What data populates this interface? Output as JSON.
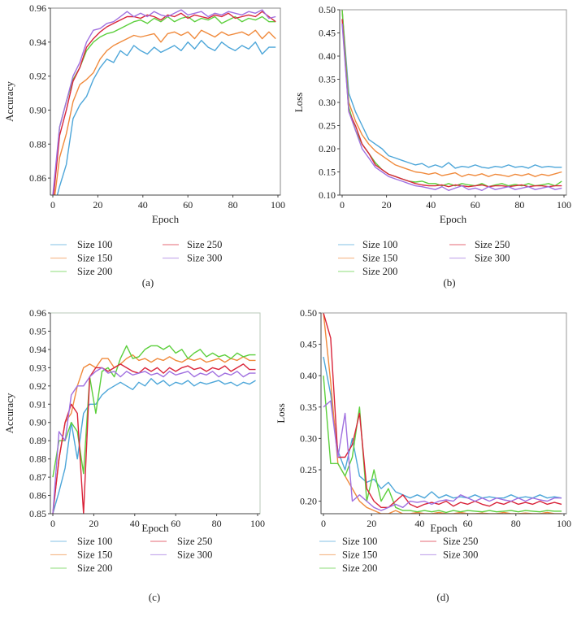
{
  "chart_data": [
    {
      "panel": "(a)",
      "type": "line",
      "xlabel": "Epoch",
      "ylabel": "Accuracy",
      "xlim": [
        0,
        100
      ],
      "ylim": [
        0.85,
        0.96
      ],
      "xticks": [
        "0",
        "20",
        "40",
        "60",
        "80",
        "100"
      ],
      "yticks": [
        "0.86",
        "0.88",
        "0.90",
        "0.92",
        "0.94",
        "0.96"
      ],
      "grid": false,
      "legend_placement": "below",
      "x": [
        0,
        3,
        6,
        9,
        12,
        15,
        18,
        21,
        24,
        27,
        30,
        33,
        36,
        39,
        42,
        45,
        48,
        51,
        54,
        57,
        60,
        63,
        66,
        69,
        72,
        75,
        78,
        81,
        84,
        87,
        90,
        93,
        96,
        99
      ],
      "series": [
        {
          "name": "Size 100",
          "color": "#4da6d9",
          "values": [
            0.84,
            0.855,
            0.868,
            0.895,
            0.903,
            0.908,
            0.918,
            0.925,
            0.93,
            0.928,
            0.935,
            0.932,
            0.938,
            0.935,
            0.933,
            0.937,
            0.934,
            0.936,
            0.938,
            0.935,
            0.94,
            0.936,
            0.941,
            0.937,
            0.935,
            0.94,
            0.937,
            0.935,
            0.938,
            0.936,
            0.94,
            0.933,
            0.937,
            0.937
          ]
        },
        {
          "name": "Size 150",
          "color": "#f08a3c",
          "values": [
            0.84,
            0.872,
            0.886,
            0.905,
            0.915,
            0.918,
            0.922,
            0.93,
            0.935,
            0.938,
            0.94,
            0.942,
            0.944,
            0.943,
            0.944,
            0.945,
            0.94,
            0.945,
            0.946,
            0.944,
            0.946,
            0.942,
            0.947,
            0.945,
            0.943,
            0.946,
            0.944,
            0.945,
            0.946,
            0.944,
            0.947,
            0.942,
            0.946,
            0.942
          ]
        },
        {
          "name": "Size 200",
          "color": "#5ccf3c",
          "values": [
            0.845,
            0.89,
            0.905,
            0.918,
            0.925,
            0.935,
            0.94,
            0.943,
            0.945,
            0.946,
            0.948,
            0.95,
            0.952,
            0.953,
            0.951,
            0.954,
            0.952,
            0.955,
            0.952,
            0.954,
            0.955,
            0.952,
            0.954,
            0.953,
            0.955,
            0.951,
            0.953,
            0.955,
            0.952,
            0.954,
            0.953,
            0.955,
            0.952,
            0.952
          ]
        },
        {
          "name": "Size 250",
          "color": "#d9243a",
          "values": [
            0.845,
            0.885,
            0.9,
            0.917,
            0.925,
            0.937,
            0.942,
            0.946,
            0.949,
            0.951,
            0.953,
            0.955,
            0.955,
            0.954,
            0.956,
            0.955,
            0.953,
            0.956,
            0.955,
            0.957,
            0.954,
            0.956,
            0.955,
            0.954,
            0.956,
            0.955,
            0.957,
            0.954,
            0.955,
            0.956,
            0.955,
            0.958,
            0.955,
            0.952
          ]
        },
        {
          "name": "Size 300",
          "color": "#a070e0",
          "values": [
            0.85,
            0.89,
            0.905,
            0.92,
            0.928,
            0.94,
            0.947,
            0.948,
            0.951,
            0.952,
            0.955,
            0.958,
            0.955,
            0.957,
            0.955,
            0.958,
            0.956,
            0.955,
            0.957,
            0.959,
            0.956,
            0.957,
            0.958,
            0.955,
            0.957,
            0.956,
            0.958,
            0.957,
            0.956,
            0.958,
            0.957,
            0.959,
            0.954,
            0.955
          ]
        }
      ]
    },
    {
      "panel": "(b)",
      "type": "line",
      "xlabel": "Epoch",
      "ylabel": "Loss",
      "xlim": [
        0,
        100
      ],
      "ylim": [
        0.1,
        0.5
      ],
      "xticks": [
        "0",
        "20",
        "40",
        "60",
        "80",
        "100"
      ],
      "yticks": [
        "0.10",
        "0.15",
        "0.20",
        "0.25",
        "0.30",
        "0.35",
        "0.40",
        "0.45",
        "0.50"
      ],
      "grid": false,
      "legend_placement": "below",
      "x": [
        0,
        3,
        6,
        9,
        12,
        15,
        18,
        21,
        24,
        27,
        30,
        33,
        36,
        39,
        42,
        45,
        48,
        51,
        54,
        57,
        60,
        63,
        66,
        69,
        72,
        75,
        78,
        81,
        84,
        87,
        90,
        93,
        96,
        99
      ],
      "series": [
        {
          "name": "Size 100",
          "color": "#4da6d9",
          "values": [
            0.5,
            0.32,
            0.28,
            0.25,
            0.22,
            0.21,
            0.2,
            0.185,
            0.18,
            0.175,
            0.17,
            0.165,
            0.168,
            0.16,
            0.165,
            0.16,
            0.17,
            0.158,
            0.162,
            0.16,
            0.165,
            0.16,
            0.158,
            0.162,
            0.16,
            0.165,
            0.16,
            0.162,
            0.158,
            0.165,
            0.16,
            0.162,
            0.16,
            0.16
          ]
        },
        {
          "name": "Size 150",
          "color": "#f08a3c",
          "values": [
            0.5,
            0.3,
            0.26,
            0.23,
            0.21,
            0.195,
            0.185,
            0.175,
            0.165,
            0.16,
            0.155,
            0.15,
            0.148,
            0.145,
            0.148,
            0.142,
            0.145,
            0.148,
            0.14,
            0.145,
            0.142,
            0.146,
            0.14,
            0.145,
            0.143,
            0.14,
            0.145,
            0.142,
            0.146,
            0.14,
            0.145,
            0.142,
            0.146,
            0.15
          ]
        },
        {
          "name": "Size 200",
          "color": "#5ccf3c",
          "values": [
            0.5,
            0.29,
            0.24,
            0.21,
            0.19,
            0.17,
            0.155,
            0.145,
            0.14,
            0.135,
            0.13,
            0.128,
            0.13,
            0.125,
            0.125,
            0.12,
            0.125,
            0.12,
            0.125,
            0.122,
            0.12,
            0.125,
            0.118,
            0.122,
            0.125,
            0.12,
            0.123,
            0.12,
            0.125,
            0.12,
            0.122,
            0.125,
            0.12,
            0.13
          ]
        },
        {
          "name": "Size 250",
          "color": "#d9243a",
          "values": [
            0.48,
            0.28,
            0.25,
            0.21,
            0.19,
            0.165,
            0.155,
            0.145,
            0.14,
            0.135,
            0.13,
            0.125,
            0.122,
            0.12,
            0.12,
            0.122,
            0.118,
            0.122,
            0.12,
            0.118,
            0.12,
            0.122,
            0.118,
            0.12,
            0.12,
            0.118,
            0.12,
            0.122,
            0.118,
            0.12,
            0.12,
            0.118,
            0.12,
            0.12
          ]
        },
        {
          "name": "Size 300",
          "color": "#a070e0",
          "values": [
            0.47,
            0.28,
            0.24,
            0.2,
            0.18,
            0.16,
            0.15,
            0.14,
            0.135,
            0.13,
            0.125,
            0.12,
            0.118,
            0.115,
            0.112,
            0.118,
            0.11,
            0.115,
            0.12,
            0.112,
            0.115,
            0.11,
            0.118,
            0.112,
            0.115,
            0.118,
            0.112,
            0.115,
            0.118,
            0.112,
            0.115,
            0.118,
            0.112,
            0.115
          ]
        }
      ]
    },
    {
      "panel": "(c)",
      "type": "line",
      "xlabel": "Epoch",
      "ylabel": "Accuracy",
      "xlim": [
        0,
        100
      ],
      "ylim": [
        0.85,
        0.96
      ],
      "xticks": [
        "0",
        "20",
        "40",
        "60",
        "80",
        "100"
      ],
      "yticks": [
        "0.85",
        "0.86",
        "0.87",
        "0.88",
        "0.89",
        "0.90",
        "0.91",
        "0.92",
        "0.93",
        "0.94",
        "0.95",
        "0.96"
      ],
      "grid": false,
      "legend_placement": "below",
      "x": [
        0,
        3,
        6,
        9,
        12,
        15,
        18,
        21,
        24,
        27,
        30,
        33,
        36,
        39,
        42,
        45,
        48,
        51,
        54,
        57,
        60,
        63,
        66,
        69,
        72,
        75,
        78,
        81,
        84,
        87,
        90,
        93,
        96,
        99
      ],
      "series": [
        {
          "name": "Size 100",
          "color": "#4da6d9",
          "values": [
            0.85,
            0.862,
            0.875,
            0.9,
            0.88,
            0.905,
            0.91,
            0.91,
            0.915,
            0.918,
            0.92,
            0.922,
            0.92,
            0.918,
            0.922,
            0.92,
            0.924,
            0.921,
            0.923,
            0.92,
            0.922,
            0.921,
            0.923,
            0.92,
            0.922,
            0.921,
            0.922,
            0.923,
            0.921,
            0.922,
            0.92,
            0.922,
            0.921,
            0.923
          ]
        },
        {
          "name": "Size 150",
          "color": "#f08a3c",
          "values": [
            0.85,
            0.88,
            0.9,
            0.905,
            0.92,
            0.93,
            0.932,
            0.93,
            0.935,
            0.935,
            0.93,
            0.932,
            0.935,
            0.937,
            0.934,
            0.935,
            0.933,
            0.935,
            0.934,
            0.936,
            0.934,
            0.933,
            0.935,
            0.934,
            0.935,
            0.933,
            0.934,
            0.935,
            0.933,
            0.935,
            0.934,
            0.936,
            0.934,
            0.934
          ]
        },
        {
          "name": "Size 200",
          "color": "#5ccf3c",
          "values": [
            0.87,
            0.89,
            0.89,
            0.9,
            0.895,
            0.872,
            0.925,
            0.905,
            0.928,
            0.93,
            0.925,
            0.935,
            0.942,
            0.935,
            0.936,
            0.94,
            0.942,
            0.942,
            0.94,
            0.942,
            0.938,
            0.94,
            0.935,
            0.938,
            0.94,
            0.936,
            0.938,
            0.936,
            0.937,
            0.935,
            0.938,
            0.936,
            0.937,
            0.937
          ]
        },
        {
          "name": "Size 250",
          "color": "#d9243a",
          "values": [
            0.85,
            0.88,
            0.9,
            0.91,
            0.905,
            0.85,
            0.925,
            0.93,
            0.93,
            0.928,
            0.93,
            0.932,
            0.93,
            0.928,
            0.927,
            0.93,
            0.928,
            0.93,
            0.927,
            0.93,
            0.928,
            0.93,
            0.931,
            0.929,
            0.93,
            0.928,
            0.93,
            0.929,
            0.931,
            0.928,
            0.93,
            0.932,
            0.929,
            0.929
          ]
        },
        {
          "name": "Size 300",
          "color": "#a070e0",
          "values": [
            0.85,
            0.895,
            0.89,
            0.915,
            0.92,
            0.92,
            0.925,
            0.928,
            0.93,
            0.927,
            0.928,
            0.925,
            0.928,
            0.926,
            0.927,
            0.928,
            0.926,
            0.927,
            0.925,
            0.928,
            0.926,
            0.927,
            0.928,
            0.925,
            0.927,
            0.926,
            0.928,
            0.925,
            0.927,
            0.926,
            0.928,
            0.925,
            0.927,
            0.927
          ]
        }
      ]
    },
    {
      "panel": "(d)",
      "type": "line",
      "xlabel": "Epoch",
      "ylabel": "Loss",
      "xlim": [
        0,
        100
      ],
      "ylim": [
        0.18,
        0.5
      ],
      "xticks": [
        "0",
        "20",
        "40",
        "60",
        "80",
        "100"
      ],
      "yticks": [
        "0.20",
        "0.25",
        "0.30",
        "0.35",
        "0.40",
        "0.45",
        "0.50"
      ],
      "grid": false,
      "legend_placement": "below",
      "x": [
        0,
        3,
        6,
        9,
        12,
        15,
        18,
        21,
        24,
        27,
        30,
        33,
        36,
        39,
        42,
        45,
        48,
        51,
        54,
        57,
        60,
        63,
        66,
        69,
        72,
        75,
        78,
        81,
        84,
        87,
        90,
        93,
        96,
        99
      ],
      "series": [
        {
          "name": "Size 100",
          "color": "#4da6d9",
          "values": [
            0.43,
            0.37,
            0.28,
            0.25,
            0.3,
            0.24,
            0.23,
            0.235,
            0.22,
            0.23,
            0.215,
            0.21,
            0.205,
            0.21,
            0.205,
            0.215,
            0.205,
            0.21,
            0.205,
            0.207,
            0.205,
            0.21,
            0.205,
            0.207,
            0.205,
            0.205,
            0.21,
            0.205,
            0.207,
            0.205,
            0.21,
            0.205,
            0.207,
            0.205
          ]
        },
        {
          "name": "Size 150",
          "color": "#f08a3c",
          "values": [
            0.5,
            0.39,
            0.26,
            0.24,
            0.22,
            0.2,
            0.19,
            0.185,
            0.18,
            0.18,
            0.185,
            0.18,
            0.18,
            0.182,
            0.18,
            0.18,
            0.182,
            0.18,
            0.18,
            0.182,
            0.18,
            0.18,
            0.181,
            0.18,
            0.18,
            0.182,
            0.18,
            0.18,
            0.181,
            0.18,
            0.18,
            0.182,
            0.18,
            0.18
          ]
        },
        {
          "name": "Size 200",
          "color": "#5ccf3c",
          "values": [
            0.4,
            0.26,
            0.26,
            0.24,
            0.27,
            0.35,
            0.2,
            0.25,
            0.2,
            0.22,
            0.19,
            0.185,
            0.185,
            0.183,
            0.185,
            0.183,
            0.185,
            0.182,
            0.185,
            0.183,
            0.185,
            0.184,
            0.183,
            0.185,
            0.183,
            0.184,
            0.185,
            0.183,
            0.185,
            0.184,
            0.183,
            0.185,
            0.184,
            0.184
          ]
        },
        {
          "name": "Size 250",
          "color": "#d9243a",
          "values": [
            0.5,
            0.46,
            0.27,
            0.27,
            0.29,
            0.34,
            0.22,
            0.2,
            0.19,
            0.19,
            0.2,
            0.21,
            0.195,
            0.19,
            0.195,
            0.198,
            0.195,
            0.2,
            0.192,
            0.198,
            0.195,
            0.2,
            0.195,
            0.192,
            0.198,
            0.195,
            0.2,
            0.195,
            0.198,
            0.195,
            0.2,
            0.195,
            0.198,
            0.195
          ]
        },
        {
          "name": "Size 300",
          "color": "#a070e0",
          "values": [
            0.35,
            0.36,
            0.27,
            0.34,
            0.2,
            0.21,
            0.2,
            0.19,
            0.185,
            0.19,
            0.195,
            0.19,
            0.2,
            0.198,
            0.2,
            0.195,
            0.2,
            0.202,
            0.2,
            0.21,
            0.205,
            0.2,
            0.205,
            0.2,
            0.205,
            0.202,
            0.2,
            0.205,
            0.2,
            0.205,
            0.202,
            0.2,
            0.205,
            0.205
          ]
        }
      ]
    }
  ]
}
